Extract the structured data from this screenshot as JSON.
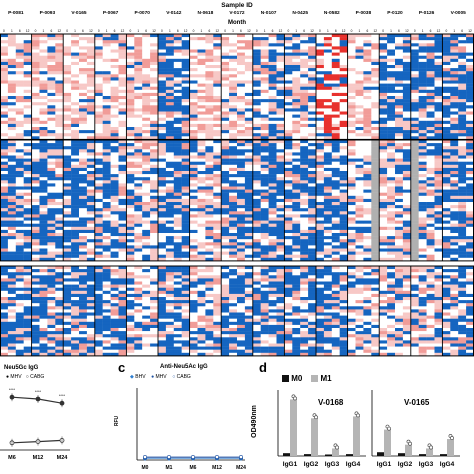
{
  "heatmap": {
    "header_title": "Sample ID",
    "month_title": "Month",
    "sample_ids": [
      "P-0081",
      "P-0093",
      "V-0165",
      "P-0067",
      "P-0070",
      "V-0142",
      "N-0618",
      "V-0172",
      "N-0107",
      "N-0425",
      "N-0582",
      "P-0038",
      "P-0120",
      "P-0126",
      "V-0005"
    ],
    "month_tick_labels": [
      "0",
      "1",
      "6",
      "12"
    ],
    "colors": {
      "high": "#e8312d",
      "mid": "#f7c8c6",
      "low": "#ffffff",
      "neg": "#1565c0",
      "na": "#b0b0b0"
    },
    "panels": 3
  },
  "panel_b": {
    "title_fragment": "Neu5Gc IgG",
    "legend": [
      {
        "marker": "filled-circle",
        "label": "MHV"
      },
      {
        "marker": "open-circle",
        "label": "CABG"
      }
    ],
    "sig_labels": [
      "****",
      "****",
      "****"
    ],
    "x_labels": [
      "M6",
      "M12",
      "M24"
    ]
  },
  "panel_c": {
    "letter": "c",
    "title": "Anti-Neu5Ac IgG",
    "y_label": "RFU",
    "legend": [
      {
        "label": "BHV"
      },
      {
        "label": "MHV"
      },
      {
        "label": "CABG"
      }
    ],
    "x_labels": [
      "M0",
      "M1",
      "M6",
      "M12",
      "M24"
    ]
  },
  "panel_d": {
    "letter": "d",
    "y_label": "OD490nm",
    "legend": [
      {
        "label": "M0",
        "color": "#111111"
      },
      {
        "label": "M1",
        "color": "#b5b5b5"
      }
    ],
    "groups": [
      "V-0168",
      "V-0165"
    ],
    "x_labels": [
      "IgG1",
      "IgG2",
      "IgG3",
      "IgG4",
      "IgG1",
      "IgG2",
      "IgG3",
      "IgG4"
    ]
  },
  "chart_data": [
    {
      "type": "heatmap",
      "title": "Sample ID",
      "columns_note": "Sample ID x Month",
      "categories": [
        "P-0081",
        "P-0093",
        "V-0165",
        "P-0067",
        "P-0070",
        "V-0142",
        "N-0618",
        "V-0172",
        "N-0107",
        "N-0425",
        "N-0582",
        "P-0038",
        "P-0120",
        "P-0126",
        "V-0005"
      ]
    },
    {
      "type": "line",
      "title": "Neu5Gc IgG",
      "categories": [
        "M6",
        "M12",
        "M24"
      ],
      "series": [
        {
          "name": "MHV",
          "values": [
            0.88,
            0.85,
            0.78
          ]
        },
        {
          "name": "CABG",
          "values": [
            0.12,
            0.14,
            0.16
          ]
        }
      ]
    },
    {
      "type": "line",
      "title": "Anti-Neu5Ac IgG",
      "ylabel": "RFU",
      "categories": [
        "M0",
        "M1",
        "M6",
        "M12",
        "M24"
      ],
      "series": [
        {
          "name": "BHV",
          "values": [
            0.02,
            0.02,
            0.02,
            0.02,
            0.02
          ]
        },
        {
          "name": "MHV",
          "values": [
            0.02,
            0.02,
            0.02,
            0.02,
            0.02
          ]
        },
        {
          "name": "CABG",
          "values": [
            0.02,
            0.02,
            0.02,
            0.02,
            0.02
          ]
        }
      ]
    },
    {
      "type": "bar",
      "ylabel": "OD490nm",
      "categories": [
        "IgG1",
        "IgG2",
        "IgG3",
        "IgG4",
        "IgG1",
        "IgG2",
        "IgG3",
        "IgG4"
      ],
      "series": [
        {
          "name": "M0",
          "values": [
            0.15,
            0.1,
            0.08,
            0.1,
            0.2,
            0.15,
            0.1,
            0.1
          ]
        },
        {
          "name": "M1",
          "values": [
            3.0,
            2.0,
            0.4,
            2.1,
            1.4,
            0.6,
            0.4,
            0.9
          ]
        }
      ]
    }
  ]
}
